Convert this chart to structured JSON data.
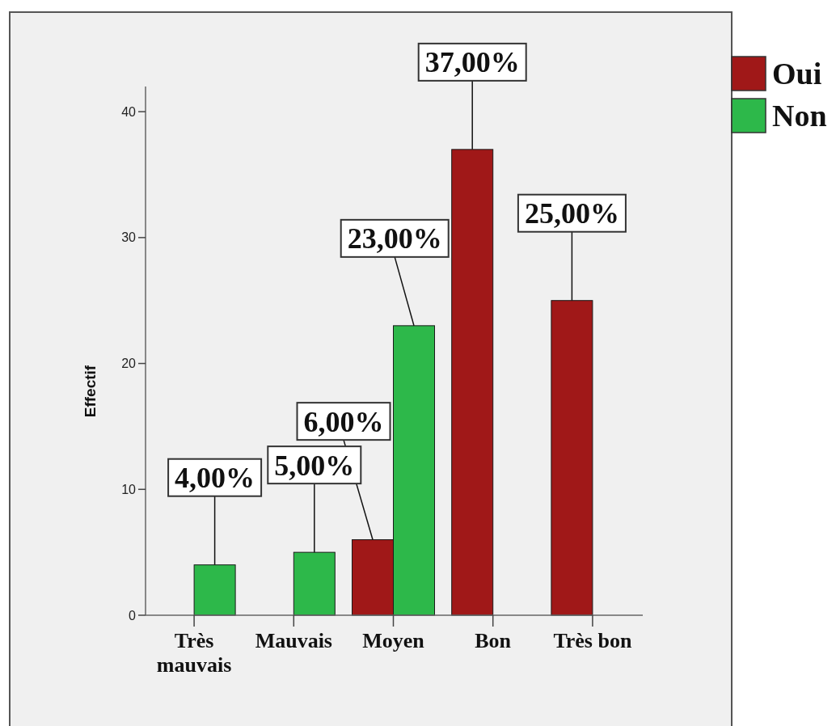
{
  "chart_data": {
    "type": "bar",
    "ylabel": "Effectif",
    "categories": [
      "Très mauvais",
      "Mauvais",
      "Moyen",
      "Bon",
      "Très bon"
    ],
    "series": [
      {
        "name": "Oui",
        "color": "#a01818",
        "values": [
          null,
          null,
          6,
          37,
          25
        ],
        "value_labels": [
          null,
          null,
          "6,00%",
          "37,00%",
          "25,00%"
        ]
      },
      {
        "name": "Non",
        "color": "#2db84a",
        "values": [
          4,
          5,
          23,
          null,
          null
        ],
        "value_labels": [
          "4,00%",
          "5,00%",
          "23,00%",
          null,
          null
        ]
      }
    ],
    "ylim": [
      0,
      42
    ],
    "yticks": [
      0,
      10,
      20,
      30,
      40
    ],
    "legend": "top right"
  }
}
